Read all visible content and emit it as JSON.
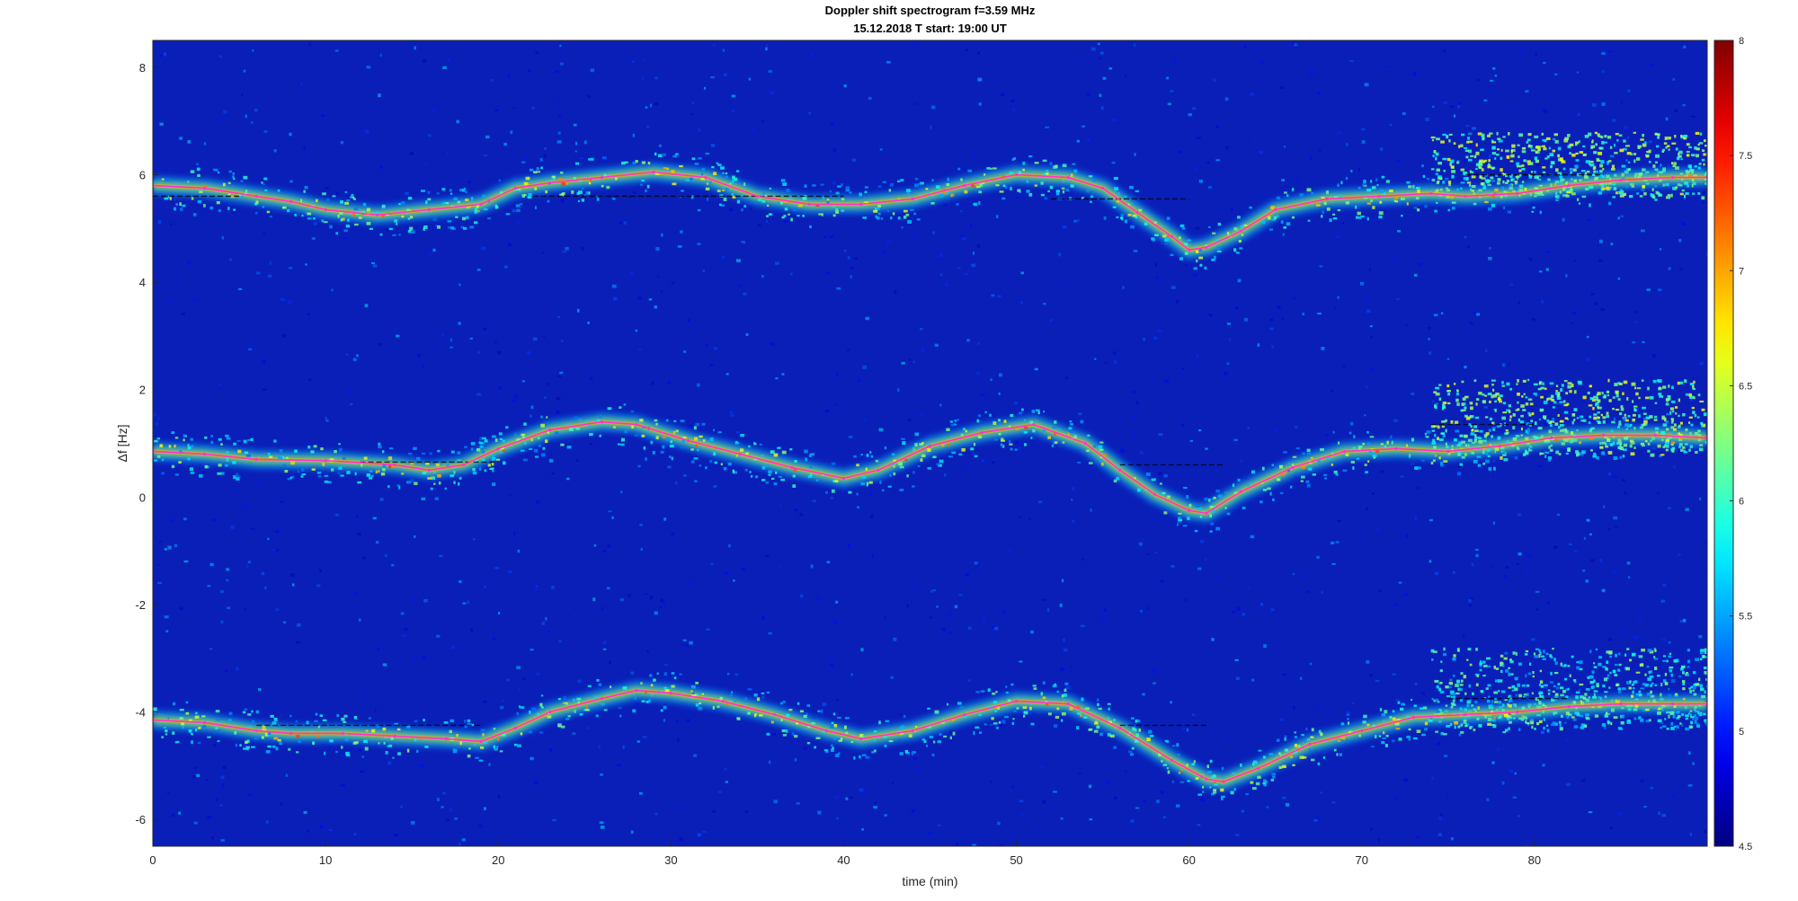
{
  "chart_data": {
    "type": "heatmap",
    "title": [
      "Doppler shift spectrogram f=3.59 MHz",
      "15.12.2018   T start: 19:00 UT"
    ],
    "xlabel": "time (min)",
    "ylabel": "Δf [Hz]",
    "xlim": [
      0,
      90
    ],
    "ylim": [
      -6.5,
      8.5
    ],
    "xticks": [
      0,
      10,
      20,
      30,
      40,
      50,
      60,
      70,
      80
    ],
    "yticks": [
      -6,
      -4,
      -2,
      0,
      2,
      4,
      6,
      8
    ],
    "colorbar": {
      "range": [
        4.5,
        8
      ],
      "ticks": [
        4.5,
        5,
        5.5,
        6,
        6.5,
        7,
        7.5,
        8
      ],
      "colormap": "jet",
      "location": "right"
    },
    "background_color": "#0a1fb8",
    "trace_color": "#ff33cc",
    "grid": false,
    "series": [
      {
        "x": [
          0,
          3,
          6,
          8,
          10,
          13,
          16,
          19,
          21,
          23,
          26,
          29,
          32,
          35,
          38,
          41,
          44,
          47,
          50,
          53,
          55,
          57,
          59,
          60,
          61,
          63,
          65,
          68,
          71,
          74,
          76,
          79,
          82,
          85,
          88,
          90
        ],
        "y": [
          5.8,
          5.75,
          5.6,
          5.5,
          5.35,
          5.25,
          5.35,
          5.45,
          5.75,
          5.85,
          5.95,
          6.05,
          5.95,
          5.6,
          5.45,
          5.45,
          5.55,
          5.8,
          6.0,
          5.95,
          5.75,
          5.3,
          4.85,
          4.6,
          4.65,
          4.95,
          5.35,
          5.55,
          5.6,
          5.65,
          5.6,
          5.65,
          5.8,
          5.9,
          5.95,
          5.95
        ]
      },
      {
        "x": [
          0,
          3,
          6,
          10,
          14,
          16,
          18,
          20,
          23,
          26,
          28,
          31,
          34,
          37,
          40,
          42,
          45,
          48,
          51,
          54,
          56,
          58,
          60,
          61,
          63,
          66,
          69,
          72,
          75,
          78,
          81,
          84,
          87,
          90
        ],
        "y": [
          0.85,
          0.8,
          0.7,
          0.68,
          0.6,
          0.5,
          0.6,
          0.9,
          1.25,
          1.4,
          1.35,
          1.05,
          0.8,
          0.55,
          0.35,
          0.5,
          0.95,
          1.2,
          1.35,
          1.0,
          0.5,
          0.05,
          -0.25,
          -0.3,
          0.1,
          0.55,
          0.85,
          0.9,
          0.85,
          0.95,
          1.1,
          1.15,
          1.15,
          1.1
        ]
      },
      {
        "x": [
          0,
          3,
          6,
          8,
          11,
          14,
          17,
          19,
          21,
          23,
          26,
          28,
          30,
          33,
          36,
          39,
          41,
          44,
          47,
          50,
          53,
          56,
          59,
          61,
          62,
          64,
          67,
          70,
          73,
          76,
          79,
          82,
          85,
          88,
          90
        ],
        "y": [
          -4.15,
          -4.2,
          -4.35,
          -4.4,
          -4.4,
          -4.45,
          -4.5,
          -4.55,
          -4.3,
          -4.0,
          -3.75,
          -3.6,
          -3.65,
          -3.8,
          -4.05,
          -4.35,
          -4.5,
          -4.35,
          -4.05,
          -3.8,
          -3.85,
          -4.3,
          -4.9,
          -5.25,
          -5.3,
          -5.05,
          -4.6,
          -4.35,
          -4.1,
          -4.05,
          -4.0,
          -3.9,
          -3.85,
          -3.85,
          -3.85
        ]
      }
    ],
    "ref_lines": [
      {
        "x": [
          0,
          5
        ],
        "y": [
          5.6,
          5.6
        ]
      },
      {
        "x": [
          22,
          40
        ],
        "y": [
          5.6,
          5.6
        ]
      },
      {
        "x": [
          52,
          60
        ],
        "y": [
          5.55,
          5.55
        ]
      },
      {
        "x": [
          76,
          84
        ],
        "y": [
          6.0,
          6.0
        ]
      },
      {
        "x": [
          12,
          20
        ],
        "y": [
          0.65,
          0.65
        ]
      },
      {
        "x": [
          56,
          62
        ],
        "y": [
          0.6,
          0.6
        ]
      },
      {
        "x": [
          74,
          80
        ],
        "y": [
          1.35,
          1.35
        ]
      },
      {
        "x": [
          6,
          19
        ],
        "y": [
          -4.25,
          -4.25
        ]
      },
      {
        "x": [
          56,
          61
        ],
        "y": [
          -4.25,
          -4.25
        ]
      },
      {
        "x": [
          75,
          82
        ],
        "y": [
          -3.75,
          -3.75
        ]
      }
    ],
    "activity_regions": [
      {
        "x": [
          74,
          90
        ],
        "y": [
          5.6,
          6.8
        ],
        "level": 6.3
      },
      {
        "x": [
          74,
          90
        ],
        "y": [
          0.8,
          2.2
        ],
        "level": 6.3
      },
      {
        "x": [
          74,
          90
        ],
        "y": [
          -4.3,
          -2.8
        ],
        "level": 6.0
      }
    ]
  }
}
